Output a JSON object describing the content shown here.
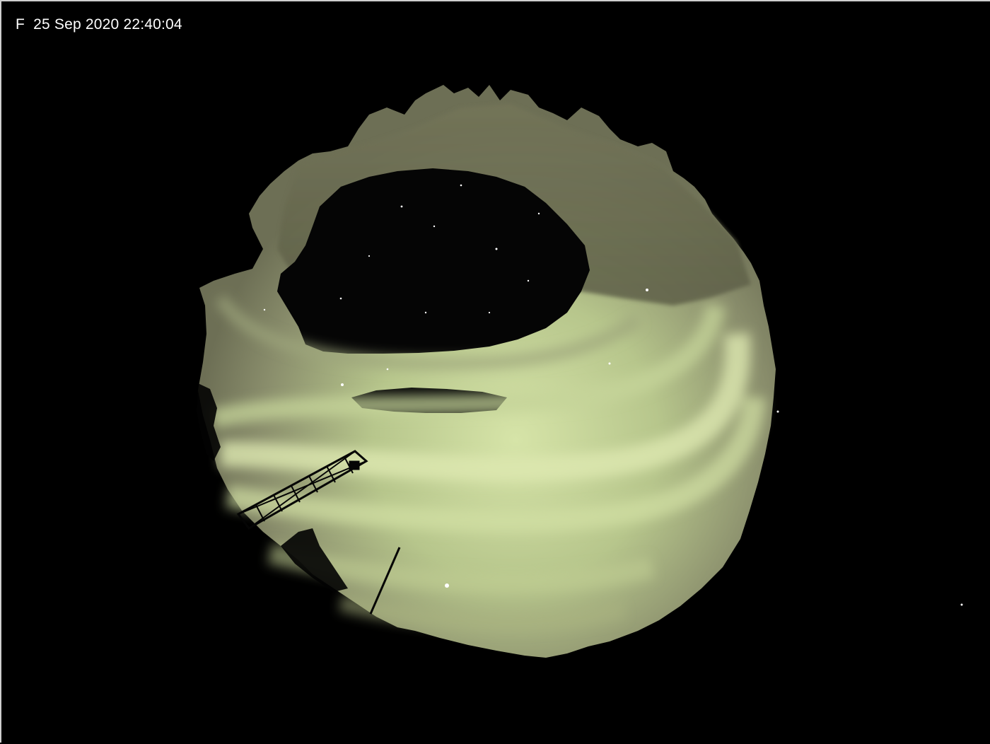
{
  "overlay": {
    "caption": "F  25 Sep 2020 22:40:04"
  },
  "scene": {
    "subject": "all-sky-aurora",
    "sky_color": "#000000",
    "aurora_color": "#c7d89c",
    "aurora_edge_color": "#6f7356",
    "mast_color": "#050505"
  }
}
